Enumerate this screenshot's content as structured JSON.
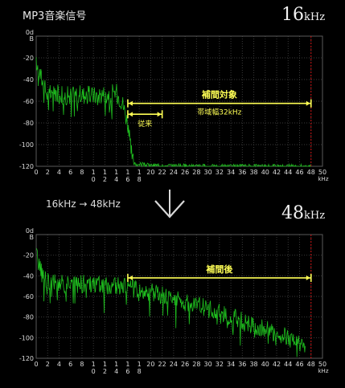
{
  "header": {
    "title": "MP3音楽信号",
    "rate_top_num": "16",
    "rate_top_unit": "kHz",
    "rate_bottom_num": "48",
    "rate_bottom_unit": "kHz",
    "conversion": "16kHz → 48kHz"
  },
  "colors": {
    "signal": "#1fbf1f",
    "grid": "#3a3a3a",
    "annotation": "#ffff55",
    "cutoff": "#cc1111"
  },
  "icons": {
    "arrow": "down-arrow-icon"
  },
  "chart_data": [
    {
      "type": "line",
      "title": "",
      "xlabel": "kHz",
      "ylabel": "",
      "xlim": [
        0,
        50
      ],
      "ylim": [
        -120,
        0
      ],
      "grid": true,
      "y_ticks": [
        "0d\nB",
        "-20",
        "-40",
        "-60",
        "-80",
        "-100",
        "-120"
      ],
      "x_ticks": [
        "0",
        "2",
        "4",
        "6",
        "8",
        "10",
        "12",
        "14",
        "16",
        "18",
        "20",
        "22",
        "24",
        "26",
        "28",
        "30",
        "32",
        "34",
        "36",
        "38",
        "40",
        "42",
        "44",
        "46",
        "48",
        "50"
      ],
      "x_tick_display": [
        "0",
        "2",
        "4",
        "6",
        "8",
        "1\n0",
        "1\n2",
        "1\n4",
        "1\n6",
        "1\n8",
        "20",
        "22",
        "24",
        "26",
        "28",
        "30",
        "32",
        "34",
        "36",
        "38",
        "40",
        "42",
        "44",
        "46",
        "48",
        "50"
      ],
      "series": [
        {
          "values": [
            [
              0,
              -25
            ],
            [
              1,
              -40
            ],
            [
              2,
              -55
            ],
            [
              3,
              -52
            ],
            [
              5,
              -55
            ],
            [
              8,
              -54
            ],
            [
              10,
              -55
            ],
            [
              12,
              -53
            ],
            [
              14,
              -52
            ],
            [
              15,
              -60
            ],
            [
              16,
              -80
            ],
            [
              16.5,
              -105
            ],
            [
              17,
              -118
            ],
            [
              18,
              -118
            ],
            [
              20,
              -119
            ],
            [
              30,
              -120
            ],
            [
              48,
              -120
            ]
          ]
        }
      ],
      "cutoff_khz": 48,
      "annotations": [
        {
          "text": "補間対象",
          "sub": "帯域幅32kHz",
          "from": 16,
          "to": 48,
          "y": -62
        },
        {
          "text": "従来",
          "from": 16,
          "to": 22,
          "y": -72
        }
      ]
    },
    {
      "type": "line",
      "title": "",
      "xlabel": "kHz",
      "ylabel": "",
      "xlim": [
        0,
        50
      ],
      "ylim": [
        -120,
        0
      ],
      "grid": true,
      "y_ticks": [
        "0d\nB",
        "-20",
        "-40",
        "-60",
        "-80",
        "-100",
        "-120"
      ],
      "x_ticks": [
        "0",
        "2",
        "4",
        "6",
        "8",
        "10",
        "12",
        "14",
        "16",
        "18",
        "20",
        "22",
        "24",
        "26",
        "28",
        "30",
        "32",
        "34",
        "36",
        "38",
        "40",
        "42",
        "44",
        "46",
        "48",
        "50"
      ],
      "x_tick_display": [
        "0",
        "2",
        "4",
        "6",
        "8",
        "1\n0",
        "1\n2",
        "1\n4",
        "1\n6",
        "1\n8",
        "20",
        "22",
        "24",
        "26",
        "28",
        "30",
        "32",
        "34",
        "36",
        "38",
        "40",
        "42",
        "44",
        "46",
        "48",
        "50"
      ],
      "series": [
        {
          "values": [
            [
              0,
              -20
            ],
            [
              1,
              -38
            ],
            [
              2,
              -45
            ],
            [
              4,
              -48
            ],
            [
              8,
              -48
            ],
            [
              12,
              -49
            ],
            [
              16,
              -51
            ],
            [
              20,
              -56
            ],
            [
              24,
              -62
            ],
            [
              28,
              -68
            ],
            [
              32,
              -76
            ],
            [
              36,
              -84
            ],
            [
              40,
              -92
            ],
            [
              44,
              -100
            ],
            [
              46,
              -106
            ],
            [
              47,
              -113
            ]
          ]
        }
      ],
      "cutoff_khz": 48,
      "annotations": [
        {
          "text": "補間後",
          "from": 16,
          "to": 48,
          "y": -42
        }
      ]
    }
  ]
}
